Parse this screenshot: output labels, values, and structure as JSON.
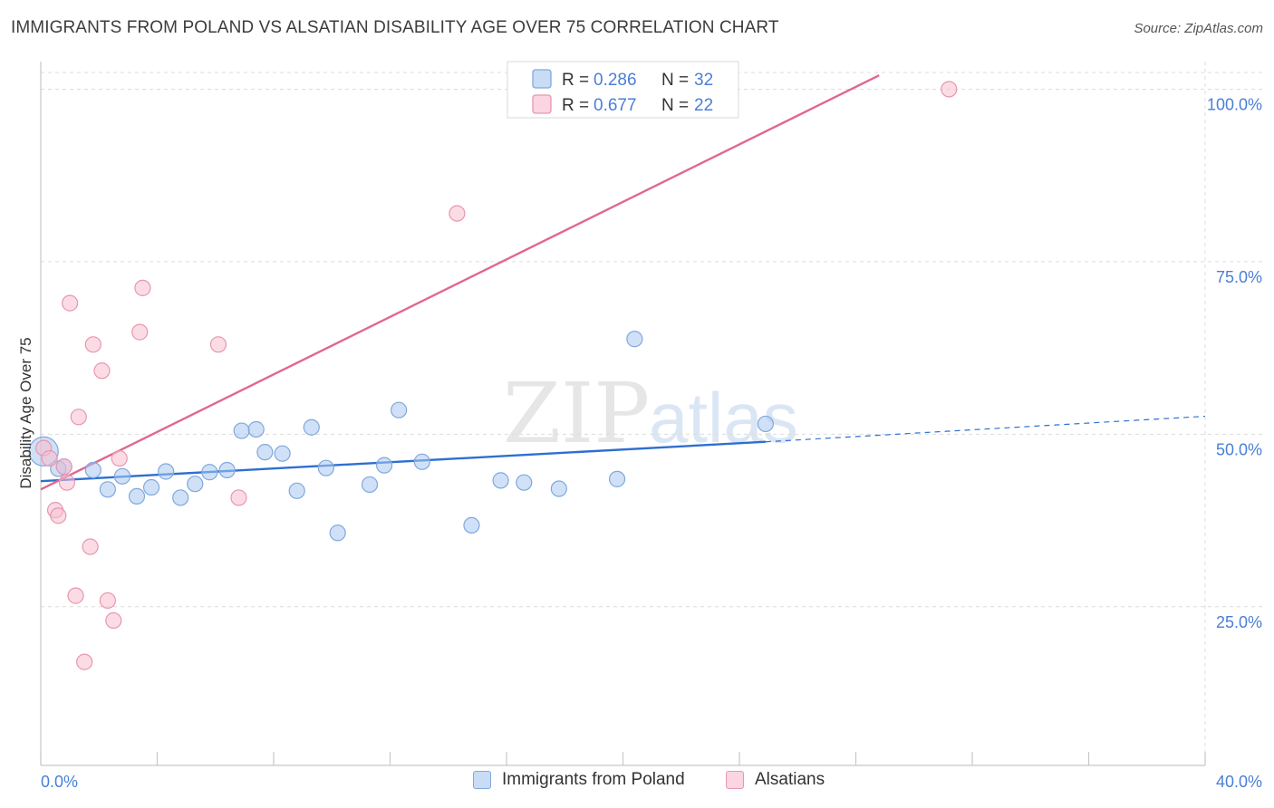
{
  "title": "IMMIGRANTS FROM POLAND VS ALSATIAN DISABILITY AGE OVER 75 CORRELATION CHART",
  "source": "Source: ZipAtlas.com",
  "watermark": {
    "zip": "ZIP",
    "atlas": "atlas"
  },
  "colors": {
    "blue": "#a9c8f0",
    "blue_stroke": "#7fa8dd",
    "blue_line": "#2e6fd1",
    "pink": "#f7bfd0",
    "pink_stroke": "#e896b0",
    "pink_line": "#e0678f",
    "axis_text": "#4a7fd6",
    "grid": "#dcdcdc"
  },
  "legend_top": [
    {
      "r_label": "R = ",
      "r_value": "0.286",
      "n_label": "N = ",
      "n_value": "32",
      "color_key": "blue"
    },
    {
      "r_label": "R = ",
      "r_value": "0.677",
      "n_label": "N = ",
      "n_value": "22",
      "color_key": "pink"
    }
  ],
  "legend_bottom": [
    {
      "label": "Immigrants from Poland",
      "color_key": "blue"
    },
    {
      "label": "Alsatians",
      "color_key": "pink"
    }
  ],
  "chart_data": {
    "type": "scatter",
    "title": "IMMIGRANTS FROM POLAND VS ALSATIAN DISABILITY AGE OVER 75 CORRELATION CHART",
    "xlabel": "",
    "ylabel": "Disability Age Over 75",
    "xlim": [
      0,
      40
    ],
    "ylim": [
      2,
      104
    ],
    "x_tick_labels": [
      "0.0%",
      "40.0%"
    ],
    "y_ticks": [
      25,
      50,
      75,
      100
    ],
    "y_tick_labels": [
      "25.0%",
      "50.0%",
      "75.0%",
      "100.0%"
    ],
    "grid": true,
    "legend_position": "top-center",
    "series": [
      {
        "name": "Immigrants from Poland",
        "color_key": "blue",
        "points": [
          [
            0.1,
            47.5
          ],
          [
            0.8,
            45.3
          ],
          [
            1.8,
            44.8
          ],
          [
            2.3,
            42.0
          ],
          [
            2.8,
            43.9
          ],
          [
            3.3,
            41.0
          ],
          [
            3.8,
            42.3
          ],
          [
            4.3,
            44.6
          ],
          [
            4.8,
            40.8
          ],
          [
            5.3,
            42.8
          ],
          [
            5.8,
            44.5
          ],
          [
            6.4,
            44.8
          ],
          [
            6.9,
            50.5
          ],
          [
            7.4,
            50.7
          ],
          [
            7.7,
            47.4
          ],
          [
            8.3,
            47.2
          ],
          [
            8.8,
            41.8
          ],
          [
            9.3,
            51.0
          ],
          [
            9.8,
            45.1
          ],
          [
            10.2,
            35.7
          ],
          [
            11.3,
            42.7
          ],
          [
            11.8,
            45.5
          ],
          [
            12.3,
            53.5
          ],
          [
            13.1,
            46.0
          ],
          [
            14.8,
            36.8
          ],
          [
            15.8,
            43.3
          ],
          [
            16.6,
            43.0
          ],
          [
            17.8,
            42.1
          ],
          [
            19.8,
            43.5
          ],
          [
            20.4,
            63.8
          ],
          [
            24.9,
            51.5
          ],
          [
            0.6,
            45.0
          ]
        ],
        "trend": {
          "x0": 0,
          "y0": 43.2,
          "x1": 24.9,
          "y1": 48.9,
          "dashed_to_x": 40,
          "dashed_to_y": 52.6
        }
      },
      {
        "name": "Alsatians",
        "color_key": "pink",
        "points": [
          [
            0.1,
            48.0
          ],
          [
            0.3,
            46.5
          ],
          [
            0.5,
            39.0
          ],
          [
            0.6,
            38.2
          ],
          [
            0.8,
            45.3
          ],
          [
            0.9,
            43.0
          ],
          [
            1.0,
            69.0
          ],
          [
            1.3,
            52.5
          ],
          [
            1.5,
            17.0
          ],
          [
            1.7,
            33.7
          ],
          [
            1.8,
            63.0
          ],
          [
            2.1,
            59.2
          ],
          [
            2.3,
            25.9
          ],
          [
            2.5,
            23.0
          ],
          [
            2.7,
            46.5
          ],
          [
            3.4,
            64.8
          ],
          [
            3.5,
            71.2
          ],
          [
            6.1,
            63.0
          ],
          [
            6.8,
            40.8
          ],
          [
            14.3,
            82.0
          ],
          [
            31.2,
            100.0
          ],
          [
            1.2,
            26.6
          ]
        ],
        "trend": {
          "x0": 0,
          "y0": 42.0,
          "x1": 28.8,
          "y1": 102.0
        }
      }
    ]
  }
}
